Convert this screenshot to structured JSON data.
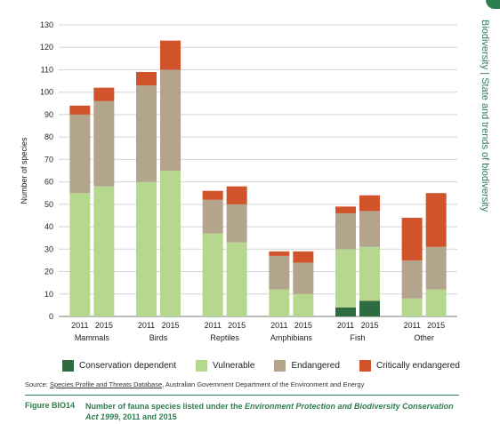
{
  "side_title": "Biodiversity | State and trends of biodiversity",
  "chart_data": {
    "type": "bar",
    "stacked": true,
    "ylabel": "Number of species",
    "ylim": [
      0,
      130
    ],
    "yticks": [
      0,
      10,
      20,
      30,
      40,
      50,
      60,
      70,
      80,
      90,
      100,
      110,
      120,
      130
    ],
    "grid": true,
    "groups": [
      {
        "name": "Mammals",
        "years": [
          "2011",
          "2015"
        ]
      },
      {
        "name": "Birds",
        "years": [
          "2011",
          "2015"
        ]
      },
      {
        "name": "Reptiles",
        "years": [
          "2011",
          "2015"
        ]
      },
      {
        "name": "Amphibians",
        "years": [
          "2011",
          "2015"
        ]
      },
      {
        "name": "Fish",
        "years": [
          "2011",
          "2015"
        ]
      },
      {
        "name": "Other",
        "years": [
          "2011",
          "2015"
        ]
      }
    ],
    "series": [
      {
        "name": "Conservation dependent",
        "color": "#2e6b3e",
        "values": [
          0,
          0,
          0,
          0,
          0,
          0,
          0,
          0,
          4,
          7,
          0,
          0
        ]
      },
      {
        "name": "Vulnerable",
        "color": "#b5d88e",
        "values": [
          55,
          58,
          60,
          65,
          37,
          33,
          12,
          10,
          26,
          24,
          8,
          12
        ]
      },
      {
        "name": "Endangered",
        "color": "#b3a48c",
        "values": [
          35,
          38,
          43,
          45,
          15,
          17,
          15,
          14,
          16,
          16,
          17,
          19
        ]
      },
      {
        "name": "Critically endangered",
        "color": "#d0532b",
        "values": [
          4,
          6,
          6,
          13,
          4,
          8,
          2,
          5,
          3,
          7,
          19,
          24
        ]
      }
    ],
    "legend_position": "bottom"
  },
  "legend": [
    {
      "label": "Conservation dependent",
      "color": "#2e6b3e"
    },
    {
      "label": "Vulnerable",
      "color": "#b5d88e"
    },
    {
      "label": "Endangered",
      "color": "#b3a48c"
    },
    {
      "label": "Critically endangered",
      "color": "#d0532b"
    }
  ],
  "source": {
    "prefix": "Source: ",
    "link": "Species Profile and Threats Database",
    "rest": ", Australian Government Department of the Environment and Energy"
  },
  "figure": {
    "label": "Figure BIO14",
    "caption_a": "Number of fauna species listed under the ",
    "caption_italic": "Environment Protection and Biodiversity Conservation Act 1999",
    "caption_b": ", 2011 and 2015"
  }
}
